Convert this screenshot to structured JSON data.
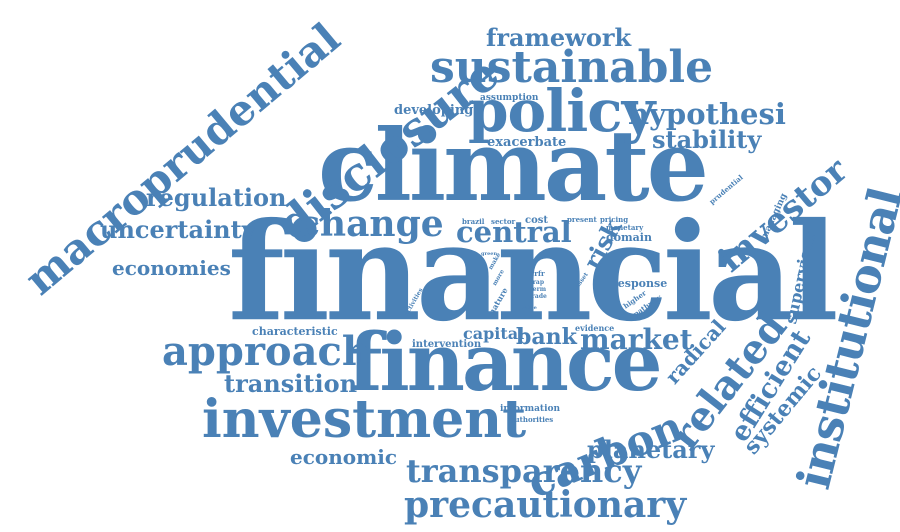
{
  "cloud": {
    "color": "#4a81b6",
    "words": [
      "financial",
      "climate",
      "finance",
      "institutional",
      "macroprudential",
      "disclosure",
      "policy",
      "sustainable",
      "investment",
      "carbon",
      "approach",
      "change",
      "central",
      "framework",
      "transparency",
      "precautionary",
      "transition",
      "market",
      "related",
      "investor",
      "hypothesi",
      "stability",
      "regulation",
      "uncertainty",
      "economies",
      "economic",
      "planetary",
      "efficient",
      "systemic",
      "radical",
      "risk",
      "bank",
      "capital",
      "supervisor",
      "developing",
      "exacerbate",
      "assumption",
      "domain",
      "cost",
      "response",
      "characteristic",
      "intervention",
      "information",
      "authorities",
      "evidence",
      "managing",
      "prudential",
      "brazil",
      "sector",
      "present",
      "pricing",
      "monetary",
      "asset",
      "higher",
      "pathway",
      "nature",
      "trap",
      "term",
      "trade",
      "crfr",
      "green",
      "make",
      "more",
      "activities",
      "value"
    ]
  }
}
